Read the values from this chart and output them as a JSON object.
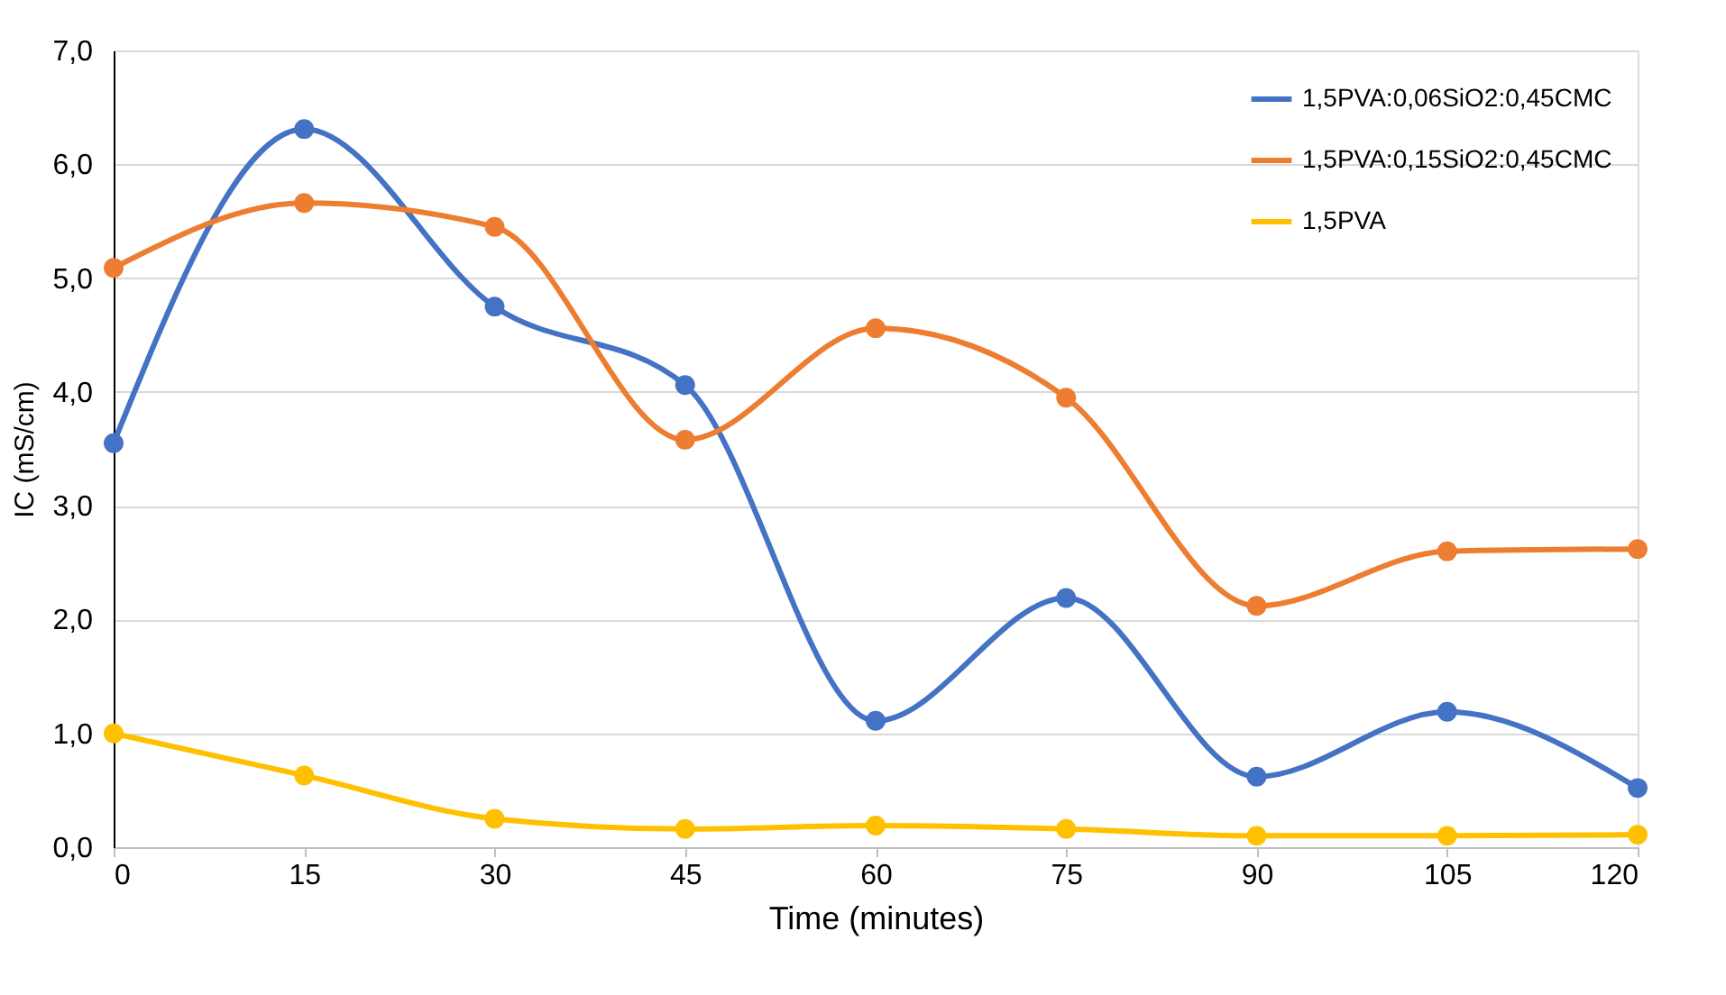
{
  "chart_data": {
    "type": "line",
    "xlabel": "Time (minutes)",
    "ylabel": "IC (mS/cm)",
    "x": [
      0,
      15,
      30,
      45,
      60,
      75,
      90,
      105,
      120
    ],
    "series": [
      {
        "name": "1,5PVA:0,06SiO2:0,45CMC",
        "color": "#4472c4",
        "values": [
          3.55,
          6.31,
          4.75,
          4.06,
          1.11,
          2.19,
          0.62,
          1.19,
          0.52
        ]
      },
      {
        "name": "1,5PVA:0,15SiO2:0,45CMC",
        "color": "#ed7d31",
        "values": [
          5.09,
          5.66,
          5.45,
          3.58,
          4.56,
          3.95,
          2.12,
          2.6,
          2.62
        ]
      },
      {
        "name": "1,5PVA",
        "color": "#ffc000",
        "values": [
          1.0,
          0.63,
          0.25,
          0.16,
          0.19,
          0.16,
          0.1,
          0.1,
          0.11
        ]
      }
    ],
    "xlim": [
      0,
      120
    ],
    "xticks": [
      0,
      15,
      30,
      45,
      60,
      75,
      90,
      105,
      120
    ],
    "ylim": [
      0,
      7
    ],
    "yticks": [
      {
        "value": 0,
        "label": "0,0"
      },
      {
        "value": 1,
        "label": "1,0"
      },
      {
        "value": 2,
        "label": "2,0"
      },
      {
        "value": 3,
        "label": "3,0"
      },
      {
        "value": 4,
        "label": "4,0"
      },
      {
        "value": 5,
        "label": "5,0"
      },
      {
        "value": 6,
        "label": "6,0"
      },
      {
        "value": 7,
        "label": "7,0"
      }
    ],
    "grid": "y",
    "legend": "top right",
    "marker": "circle",
    "line_style": "solid"
  }
}
